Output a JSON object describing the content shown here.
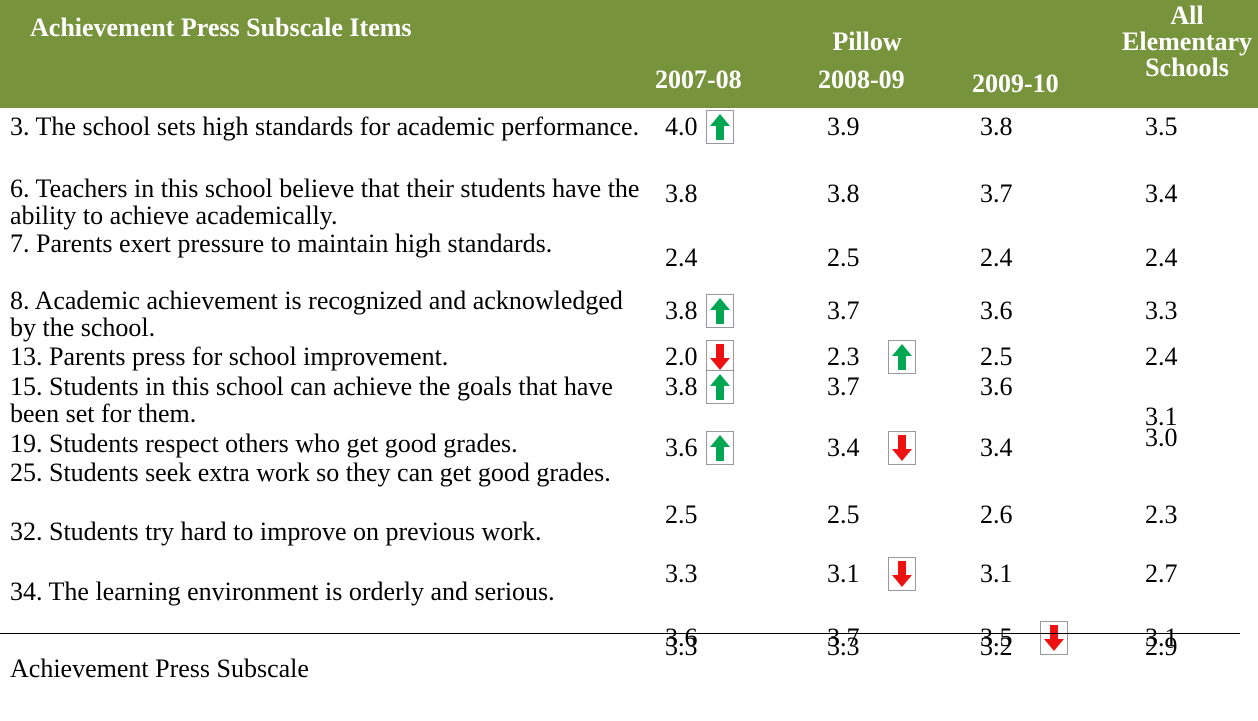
{
  "header": {
    "title": "Achievement Press Subscale Items",
    "group": "Pillow",
    "columns": [
      "2007-08",
      "2008-09",
      "2009-10",
      "All Elementary Schools"
    ]
  },
  "table": {
    "rows": [
      [
        "3. The school sets high standards for academic performance.",
        "4.0",
        "3.9",
        "3.8",
        "3.5"
      ],
      [
        "6. Teachers in this school believe that their students have the ability to achieve academically.",
        "3.8",
        "3.8",
        "3.7",
        "3.4"
      ],
      [
        "7. Parents exert pressure to maintain high standards.",
        "2.4",
        "2.5",
        "2.4",
        "2.4"
      ],
      [
        "8. Academic achievement is recognized and acknowledged by the school.",
        "3.8",
        "3.7",
        "3.6",
        "3.3"
      ],
      [
        "13. Parents press for school improvement.",
        "2.0",
        "2.3",
        "2.5",
        "2.4"
      ],
      [
        "15. Students in this school can achieve the goals that have been set for them.",
        "3.8",
        "3.7",
        "3.6",
        "3.1"
      ],
      [
        "19. Students respect others who get good grades.",
        "3.6",
        "3.4",
        "3.4",
        "3.0"
      ],
      [
        "25. Students seek extra work so they can get good grades.",
        "2.5",
        "2.5",
        "2.6",
        "2.3"
      ],
      [
        "32. Students try hard to improve on previous work.",
        "3.3",
        "3.1",
        "3.1",
        "2.7"
      ],
      [
        "34. The learning environment is orderly and serious.",
        "3.6",
        "3.7",
        "3.5",
        "3.1"
      ],
      [
        "Achievement Press Subscale",
        "3.3",
        "3.3",
        "3.2",
        "2.9"
      ]
    ]
  }
}
